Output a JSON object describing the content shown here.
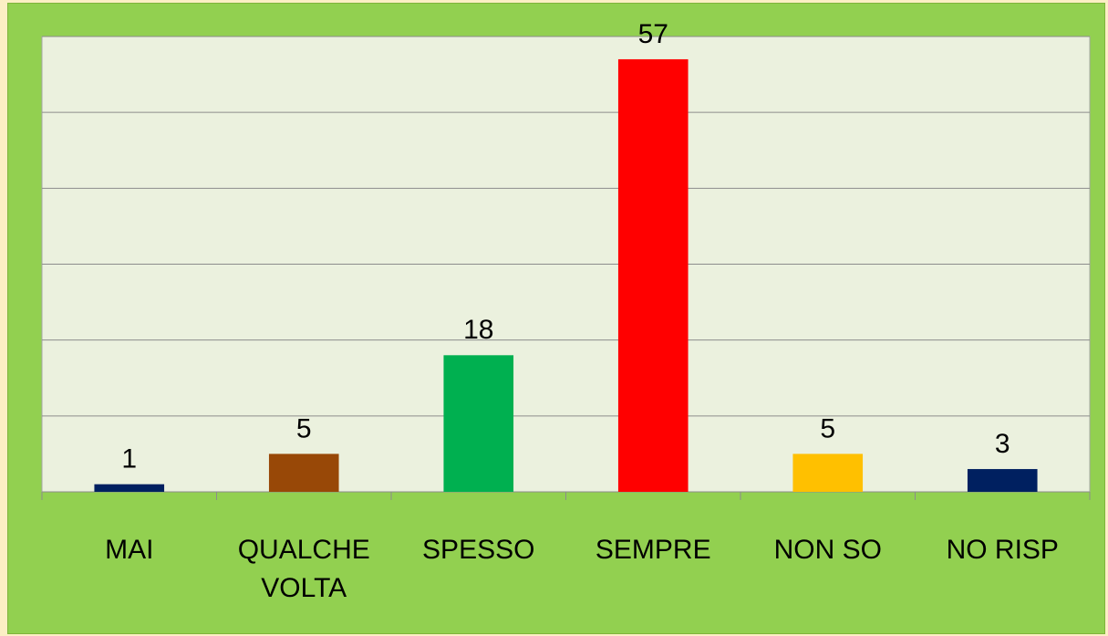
{
  "chart_data": {
    "type": "bar",
    "categories": [
      "MAI",
      "QUALCHE VOLTA",
      "SPESSO",
      "SEMPRE",
      "NON SO",
      "NO RISP"
    ],
    "values": [
      1,
      5,
      18,
      57,
      5,
      3
    ],
    "colors": [
      "#002060",
      "#984807",
      "#00b050",
      "#ff0000",
      "#ffc000",
      "#002060"
    ],
    "ylim": [
      0,
      60
    ],
    "yticks": [
      0,
      10,
      20,
      30,
      40,
      50,
      60
    ],
    "grid": true
  }
}
